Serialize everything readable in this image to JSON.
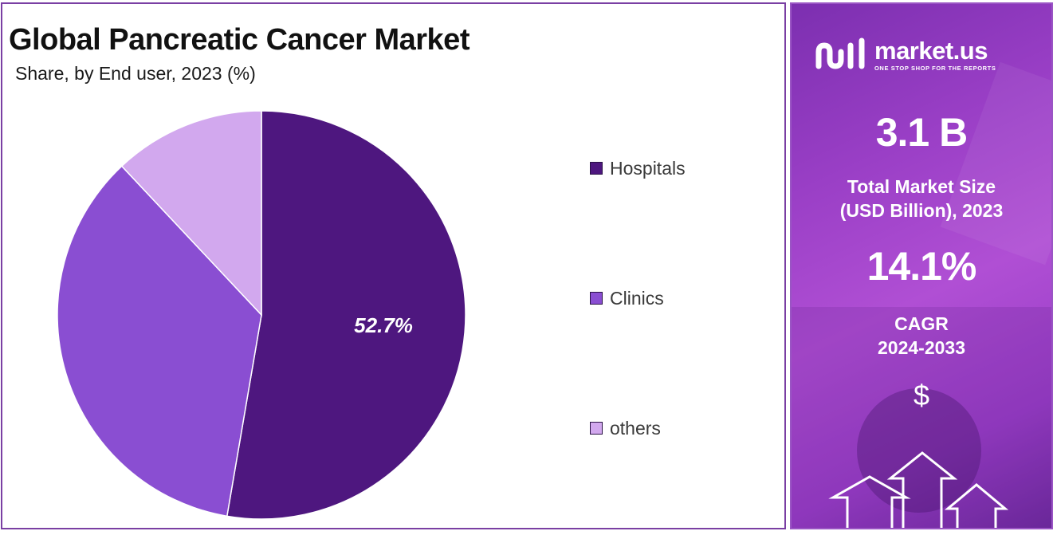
{
  "chart_data": {
    "type": "pie",
    "title": "Global Pancreatic Cancer Market",
    "subtitle": "Share, by End user, 2023 (%)",
    "categories": [
      "Hospitals",
      "Clinics",
      "others"
    ],
    "values": [
      52.7,
      35.3,
      12.0
    ],
    "data_labels": [
      "52.7%",
      "",
      ""
    ],
    "colors": [
      "#4e177f",
      "#8a4ed2",
      "#d2a8ee"
    ],
    "legend_position": "right"
  },
  "sidebar": {
    "brand_name": "market.us",
    "brand_tagline": "ONE STOP SHOP FOR THE REPORTS",
    "market_size_value": "3.1 B",
    "market_size_label_line1": "Total Market Size",
    "market_size_label_line2": "(USD Billion), 2023",
    "cagr_value": "14.1%",
    "cagr_label_line1": "CAGR",
    "cagr_label_line2": "2024-2033",
    "currency_symbol": "$",
    "icons": [
      "market-us-logo-icon",
      "up-arrows-icon"
    ]
  }
}
